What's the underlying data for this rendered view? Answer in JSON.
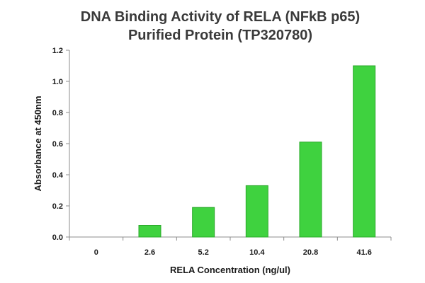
{
  "chart_data": {
    "type": "bar",
    "title": "DNA Binding Activity of RELA (NFkB p65)",
    "subtitle": "Purified Protein (TP320780)",
    "xlabel": "RELA Concentration (ng/ul)",
    "ylabel": "Absorbance at 450nm",
    "categories": [
      "0",
      "2.6",
      "5.2",
      "10.4",
      "20.8",
      "41.6"
    ],
    "values": [
      0.0,
      0.075,
      0.19,
      0.33,
      0.61,
      1.1
    ],
    "ylim": [
      0,
      1.2
    ],
    "yticks": [
      "0.0",
      "0.2",
      "0.4",
      "0.6",
      "0.8",
      "1.0",
      "1.2"
    ],
    "grid": false,
    "legend": "none",
    "bar_color": "#3fd23f",
    "bar_edge_color": "#2aa82a"
  }
}
